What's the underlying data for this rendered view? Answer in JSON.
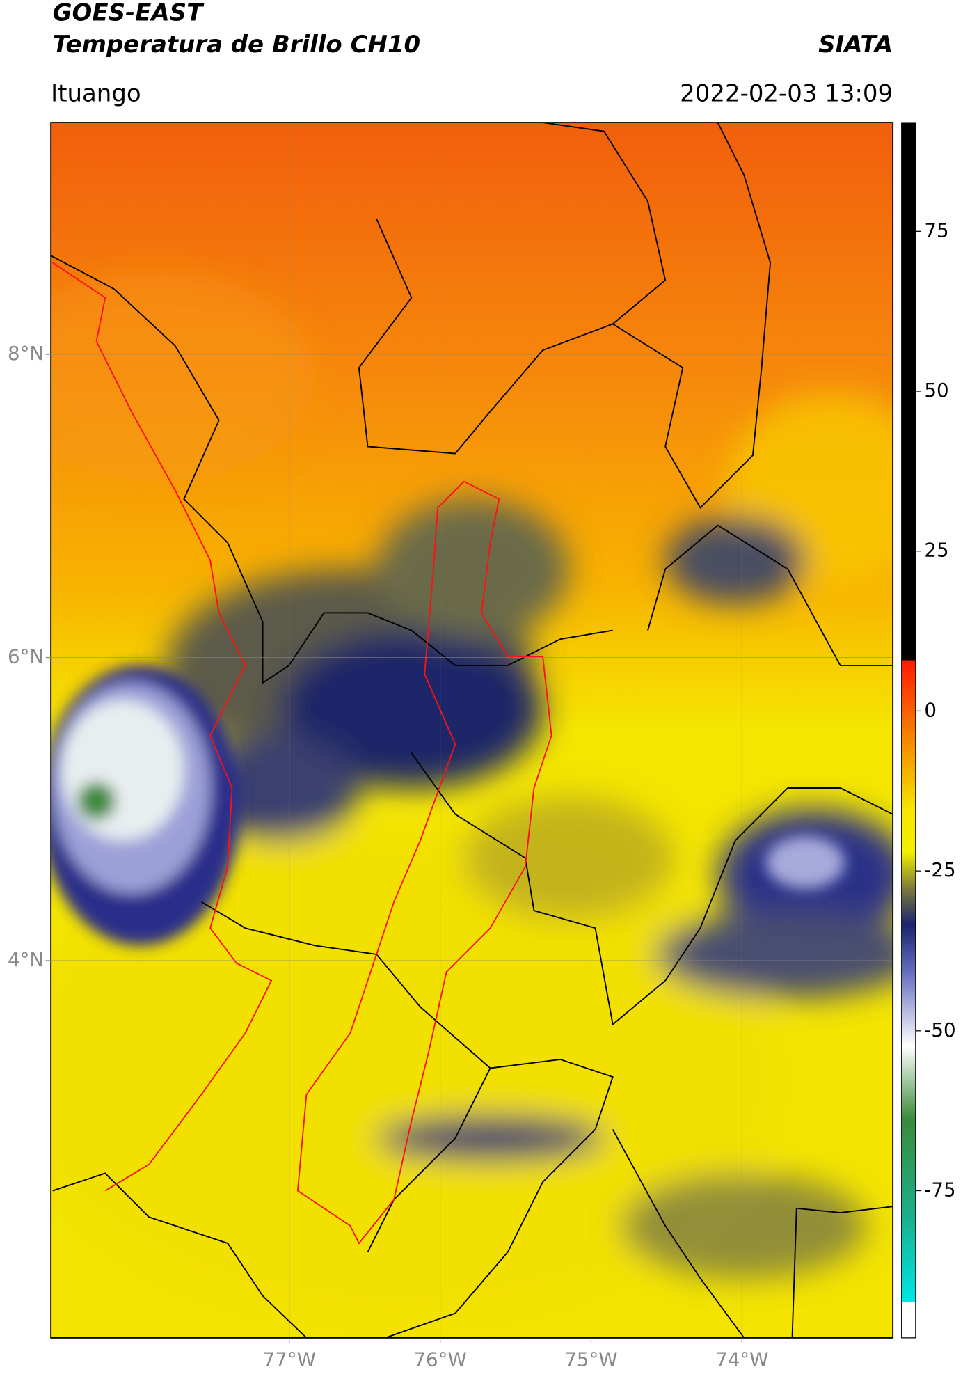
{
  "header": {
    "title": "GOES-EAST",
    "subtitle": "Temperatura de Brillo CH10",
    "brand": "SIATA",
    "location": "Ituango",
    "datetime": "2022-02-03 13:09"
  },
  "map": {
    "xlim": [
      -78.58,
      -73.0
    ],
    "ylim": [
      1.51,
      9.53
    ],
    "xticks": [
      {
        "value": -77,
        "label": "77°W"
      },
      {
        "value": -76,
        "label": "76°W"
      },
      {
        "value": -75,
        "label": "75°W"
      },
      {
        "value": -74,
        "label": "74°W"
      }
    ],
    "yticks": [
      {
        "value": 8,
        "label": "8°N"
      },
      {
        "value": 6,
        "label": "6°N"
      },
      {
        "value": 4,
        "label": "4°N"
      }
    ],
    "grid": true
  },
  "colorbar": {
    "ylim": [
      -98,
      92
    ],
    "yticks": [
      75,
      50,
      25,
      0,
      -25,
      -50,
      -75
    ]
  }
}
